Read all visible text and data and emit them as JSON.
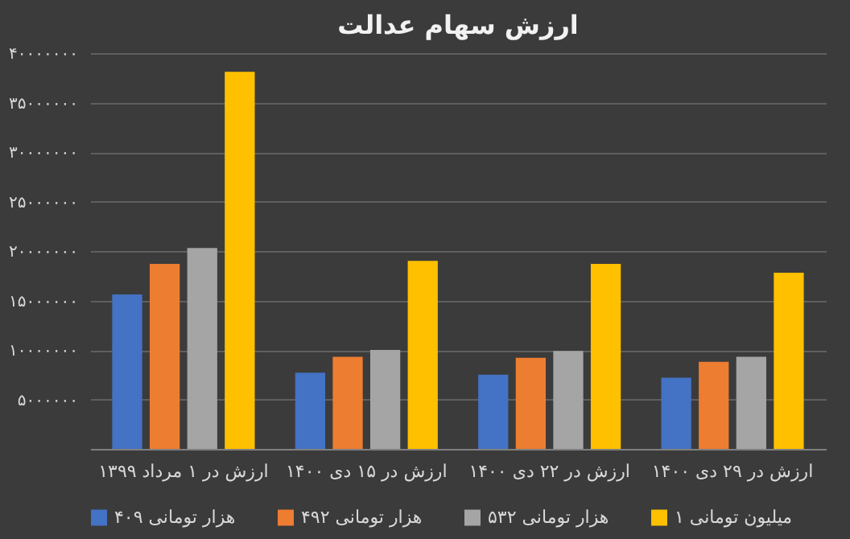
{
  "chart_data": {
    "type": "bar",
    "title": "ارزش سهام عدالت",
    "categories": [
      "ارزش در ۱ مرداد ۱۳۹۹",
      "ارزش در ۱۵ دی ۱۴۰۰",
      "ارزش در ۲۲ دی ۱۴۰۰",
      "ارزش در ۲۹ دی ۱۴۰۰"
    ],
    "series": [
      {
        "name": "۴۰۹ هزار تومانی",
        "color": "#4472c4",
        "values": [
          15600000,
          7700000,
          7500000,
          7200000
        ]
      },
      {
        "name": "۴۹۲ هزار تومانی",
        "color": "#ed7d31",
        "values": [
          18700000,
          9300000,
          9200000,
          8800000
        ]
      },
      {
        "name": "۵۳۲ هزار تومانی",
        "color": "#a5a5a5",
        "values": [
          20300000,
          10000000,
          9900000,
          9300000
        ]
      },
      {
        "name": "۱ میلیون تومانی",
        "color": "#ffc000",
        "values": [
          38100000,
          19000000,
          18700000,
          17800000
        ]
      }
    ],
    "ylim": [
      0,
      40000000
    ],
    "yticks": [
      {
        "value": 0,
        "label": null
      },
      {
        "value": 5000000,
        "label": "۵۰۰۰۰۰۰"
      },
      {
        "value": 10000000,
        "label": "۱۰۰۰۰۰۰۰"
      },
      {
        "value": 15000000,
        "label": "۱۵۰۰۰۰۰۰"
      },
      {
        "value": 20000000,
        "label": "۲۰۰۰۰۰۰۰"
      },
      {
        "value": 25000000,
        "label": "۲۵۰۰۰۰۰۰"
      },
      {
        "value": 30000000,
        "label": "۳۰۰۰۰۰۰۰"
      },
      {
        "value": 35000000,
        "label": "۳۵۰۰۰۰۰۰"
      },
      {
        "value": 40000000,
        "label": "۴۰۰۰۰۰۰۰"
      }
    ],
    "grid": "y",
    "legend": "bottom"
  }
}
